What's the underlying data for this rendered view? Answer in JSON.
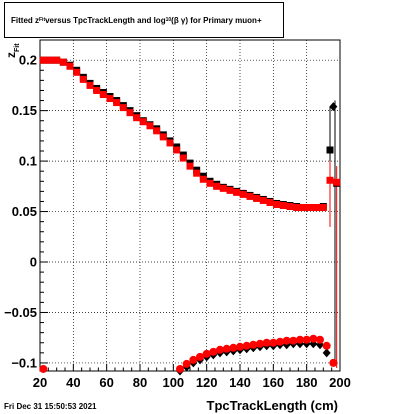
{
  "title": {
    "prefix": "Fitted  z",
    "sub1": "Fit",
    "middle": "  versus TpcTrackLength and log",
    "sub2": "10",
    "suffix": "(β  γ) for Primary muon+"
  },
  "footer": "Fri Dec 31 15:50:53 2021",
  "chart_data": {
    "type": "scatter",
    "title": "Fitted z_Fit versus TpcTrackLength and log10(β γ) for Primary muon+",
    "xlabel": "TpcTrackLength (cm)",
    "ylabel": "z_Fit",
    "xlim": [
      20,
      200
    ],
    "ylim": [
      -0.108,
      0.22
    ],
    "grid": true,
    "xticks": [
      20,
      40,
      60,
      80,
      100,
      120,
      140,
      160,
      180,
      200
    ],
    "yticks": [
      -0.1,
      -0.05,
      0,
      0.05,
      0.1,
      0.15,
      0.2
    ],
    "ytick_labels": [
      "−0.1",
      "−0.05",
      "0",
      "0.05",
      "0.1",
      "0.15",
      "0.2"
    ],
    "series": [
      {
        "marker": "square",
        "color": "#000000",
        "x": [
          22,
          26,
          30,
          34,
          38,
          42,
          46,
          50,
          54,
          58,
          62,
          66,
          70,
          74,
          78,
          82,
          86,
          90,
          94,
          98,
          102,
          106,
          110,
          114,
          118,
          122,
          126,
          130,
          134,
          138,
          142,
          146,
          150,
          154,
          158,
          162,
          166,
          170,
          174,
          178,
          182,
          186,
          190,
          194,
          198
        ],
        "y": [
          0.2,
          0.2,
          0.2,
          0.198,
          0.195,
          0.19,
          0.183,
          0.177,
          0.172,
          0.168,
          0.164,
          0.16,
          0.155,
          0.15,
          0.145,
          0.14,
          0.136,
          0.132,
          0.126,
          0.12,
          0.114,
          0.106,
          0.098,
          0.091,
          0.085,
          0.08,
          0.077,
          0.074,
          0.072,
          0.07,
          0.068,
          0.066,
          0.064,
          0.062,
          0.06,
          0.058,
          0.057,
          0.056,
          0.055,
          0.054,
          0.054,
          0.054,
          0.055,
          0.111,
          0.078
        ]
      },
      {
        "marker": "diamond",
        "color": "#000000",
        "x": [
          104,
          108,
          112,
          116,
          120,
          124,
          128,
          132,
          136,
          140,
          144,
          148,
          152,
          156,
          160,
          164,
          168,
          172,
          176,
          180,
          184,
          188,
          192,
          196
        ],
        "y": [
          -0.108,
          -0.104,
          -0.1,
          -0.097,
          -0.094,
          -0.092,
          -0.09,
          -0.089,
          -0.088,
          -0.087,
          -0.086,
          -0.085,
          -0.084,
          -0.083,
          -0.083,
          -0.082,
          -0.082,
          -0.081,
          -0.081,
          -0.081,
          -0.081,
          -0.082,
          -0.09,
          0.154
        ]
      },
      {
        "marker": "square",
        "color": "#ff0000",
        "x": [
          22,
          26,
          30,
          34,
          38,
          42,
          46,
          50,
          54,
          58,
          62,
          66,
          70,
          74,
          78,
          82,
          86,
          90,
          94,
          98,
          102,
          106,
          110,
          114,
          118,
          122,
          126,
          130,
          134,
          138,
          142,
          146,
          150,
          154,
          158,
          162,
          166,
          170,
          174,
          178,
          182,
          186,
          190,
          194,
          198
        ],
        "y": [
          0.2,
          0.2,
          0.2,
          0.198,
          0.194,
          0.188,
          0.181,
          0.175,
          0.17,
          0.166,
          0.162,
          0.158,
          0.153,
          0.148,
          0.143,
          0.139,
          0.135,
          0.13,
          0.124,
          0.118,
          0.111,
          0.103,
          0.095,
          0.088,
          0.082,
          0.078,
          0.075,
          0.073,
          0.071,
          0.069,
          0.067,
          0.065,
          0.063,
          0.061,
          0.059,
          0.057,
          0.056,
          0.055,
          0.054,
          0.054,
          0.054,
          0.054,
          0.054,
          0.081,
          0.079
        ]
      },
      {
        "marker": "circle",
        "color": "#ff0000",
        "x": [
          22,
          104,
          108,
          112,
          116,
          120,
          124,
          128,
          132,
          136,
          140,
          144,
          148,
          152,
          156,
          160,
          164,
          168,
          172,
          176,
          180,
          184,
          188,
          192,
          196
        ],
        "y": [
          -0.106,
          -0.106,
          -0.101,
          -0.097,
          -0.094,
          -0.091,
          -0.089,
          -0.087,
          -0.086,
          -0.085,
          -0.084,
          -0.083,
          -0.082,
          -0.081,
          -0.08,
          -0.08,
          -0.079,
          -0.078,
          -0.078,
          -0.077,
          -0.077,
          -0.076,
          -0.077,
          -0.083,
          -0.1
        ]
      }
    ]
  }
}
